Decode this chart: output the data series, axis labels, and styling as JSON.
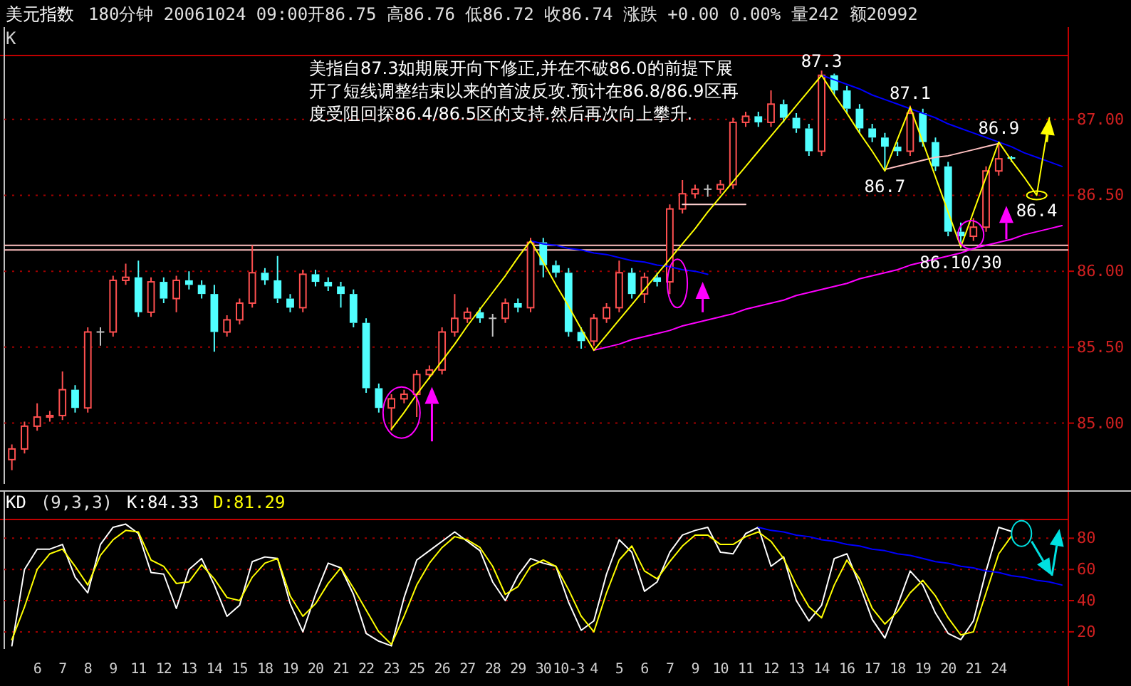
{
  "chart_data": [
    {
      "type": "candlestick",
      "title": "美元指数",
      "subtitle": "180分钟  20061024 09:00开86.75 高86.76 低86.72 收86.74 涨跌 +0.00 0.00% 量242 额20992",
      "annotations": [
        "K",
        "美指自87.3如期展开向下修正,并在不破86.0的前提下展开了短线调整结束以来的首波反攻.预计在86.8/86.9区再度受阻回探86.4/86.5区的支持.然后再次向上攀升.",
        {
          "text": "87.3",
          "y": 87.29
        },
        {
          "text": "87.1",
          "y": 87.08
        },
        {
          "text": "86.7",
          "y": 86.66
        },
        {
          "text": "86.9",
          "y": 86.85
        },
        {
          "text": "86.4",
          "y": 86.5
        },
        {
          "text": "86.10/30",
          "y": 86.16
        }
      ],
      "categories": [
        null,
        null,
        null,
        null,
        null,
        null,
        null,
        null,
        null,
        null,
        null,
        null,
        null,
        null,
        null,
        null,
        null,
        null,
        null,
        null,
        null,
        null,
        null,
        null,
        null,
        null,
        null,
        null,
        null,
        null,
        null,
        null,
        null,
        null,
        null,
        null,
        null,
        null,
        null,
        null,
        null,
        null,
        null,
        null,
        null,
        null,
        null,
        null,
        null,
        null,
        null,
        null,
        null,
        null,
        null,
        null,
        null,
        null,
        null,
        null,
        null,
        null,
        null,
        null,
        null,
        null,
        null,
        null,
        null,
        null,
        null,
        null,
        null,
        null,
        null,
        null,
        null,
        null,
        null,
        null,
        null,
        null,
        null,
        null
      ],
      "ylim": [
        84.6,
        87.42
      ],
      "yticks": [
        {
          "value": 85,
          "label": "85.00"
        },
        {
          "value": 85.5,
          "label": "85.50"
        },
        {
          "value": 86,
          "label": "86.00"
        },
        {
          "value": 86.5,
          "label": "86.50"
        },
        {
          "value": 87,
          "label": "87.00"
        }
      ],
      "grid": "y",
      "tick_labels": "y",
      "ref_lines": [
        {
          "axis": "y",
          "value": 86.17,
          "color": "#ffc0c0"
        },
        {
          "axis": "y",
          "value": 86.14,
          "color": "#ffc0c0"
        }
      ],
      "series": [
        {
          "type": "candlestick",
          "ohlc": [
            [
              84.76,
              84.86,
              84.69,
              84.83
            ],
            [
              84.83,
              85.01,
              84.8,
              84.98
            ],
            [
              84.98,
              85.13,
              84.95,
              85.04
            ],
            [
              85.04,
              85.08,
              85.01,
              85.05
            ],
            [
              85.05,
              85.34,
              85.02,
              85.22
            ],
            [
              85.22,
              85.25,
              85.07,
              85.1
            ],
            [
              85.1,
              85.63,
              85.07,
              85.6
            ],
            [
              85.6,
              85.63,
              85.51,
              85.6
            ],
            [
              85.6,
              85.97,
              85.57,
              85.94
            ],
            [
              85.94,
              86.05,
              85.91,
              85.96
            ],
            [
              85.96,
              86.07,
              85.7,
              85.73
            ],
            [
              85.73,
              85.96,
              85.7,
              85.93
            ],
            [
              85.93,
              85.96,
              85.79,
              85.82
            ],
            [
              85.82,
              85.97,
              85.73,
              85.94
            ],
            [
              85.94,
              86.0,
              85.88,
              85.91
            ],
            [
              85.91,
              85.94,
              85.82,
              85.85
            ],
            [
              85.85,
              85.91,
              85.47,
              85.6
            ],
            [
              85.6,
              85.71,
              85.57,
              85.68
            ],
            [
              85.68,
              85.82,
              85.65,
              85.79
            ],
            [
              85.79,
              86.17,
              85.76,
              85.99
            ],
            [
              85.99,
              86.02,
              85.91,
              85.94
            ],
            [
              85.94,
              86.1,
              85.79,
              85.82
            ],
            [
              85.82,
              85.85,
              85.73,
              85.76
            ],
            [
              85.76,
              86.01,
              85.73,
              85.98
            ],
            [
              85.98,
              86.01,
              85.9,
              85.93
            ],
            [
              85.93,
              85.96,
              85.87,
              85.9
            ],
            [
              85.9,
              85.93,
              85.76,
              85.85
            ],
            [
              85.85,
              85.88,
              85.63,
              85.66
            ],
            [
              85.66,
              85.69,
              85.2,
              85.23
            ],
            [
              85.23,
              85.26,
              85.07,
              85.1
            ],
            [
              85.1,
              85.19,
              84.95,
              85.16
            ],
            [
              85.16,
              85.22,
              85.13,
              85.19
            ],
            [
              85.19,
              85.35,
              85.04,
              85.32
            ],
            [
              85.32,
              85.38,
              85.29,
              85.35
            ],
            [
              85.35,
              85.63,
              85.32,
              85.6
            ],
            [
              85.6,
              85.85,
              85.57,
              85.69
            ],
            [
              85.69,
              85.76,
              85.66,
              85.73
            ],
            [
              85.73,
              85.76,
              85.66,
              85.69
            ],
            [
              85.69,
              85.72,
              85.57,
              85.69
            ],
            [
              85.69,
              85.82,
              85.66,
              85.79
            ],
            [
              85.79,
              85.82,
              85.73,
              85.76
            ],
            [
              85.76,
              86.22,
              85.73,
              86.19
            ],
            [
              86.19,
              86.22,
              85.96,
              86.04
            ],
            [
              86.04,
              86.07,
              85.96,
              85.99
            ],
            [
              85.99,
              86.02,
              85.57,
              85.6
            ],
            [
              85.6,
              85.63,
              85.49,
              85.54
            ],
            [
              85.54,
              85.72,
              85.51,
              85.69
            ],
            [
              85.69,
              85.79,
              85.66,
              85.76
            ],
            [
              85.76,
              86.07,
              85.73,
              85.99
            ],
            [
              85.99,
              86.02,
              85.82,
              85.85
            ],
            [
              85.85,
              85.99,
              85.79,
              85.96
            ],
            [
              85.96,
              85.99,
              85.9,
              85.93
            ],
            [
              85.93,
              86.44,
              85.85,
              86.41
            ],
            [
              86.41,
              86.6,
              86.38,
              86.51
            ],
            [
              86.51,
              86.57,
              86.48,
              86.54
            ],
            [
              86.54,
              86.57,
              86.49,
              86.54
            ],
            [
              86.54,
              86.6,
              86.51,
              86.57
            ],
            [
              86.57,
              87.01,
              86.54,
              86.98
            ],
            [
              86.98,
              87.05,
              86.95,
              87.02
            ],
            [
              87.02,
              87.05,
              86.95,
              86.98
            ],
            [
              86.98,
              87.19,
              86.95,
              87.1
            ],
            [
              87.1,
              87.13,
              86.98,
              87.01
            ],
            [
              87.01,
              87.04,
              86.91,
              86.94
            ],
            [
              86.94,
              86.97,
              86.76,
              86.79
            ],
            [
              86.79,
              87.32,
              86.76,
              87.29
            ],
            [
              87.29,
              87.3,
              87.16,
              87.19
            ],
            [
              87.19,
              87.22,
              87.04,
              87.07
            ],
            [
              87.07,
              87.1,
              86.91,
              86.94
            ],
            [
              86.94,
              86.97,
              86.85,
              86.88
            ],
            [
              86.88,
              86.91,
              86.66,
              86.82
            ],
            [
              86.82,
              86.85,
              86.76,
              86.79
            ],
            [
              86.79,
              87.09,
              86.76,
              87.04
            ],
            [
              87.04,
              87.07,
              86.82,
              86.85
            ],
            [
              86.85,
              86.88,
              86.66,
              86.69
            ],
            [
              86.69,
              86.72,
              86.23,
              86.26
            ],
            [
              86.26,
              86.32,
              86.15,
              86.23
            ],
            [
              86.23,
              86.35,
              86.2,
              86.29
            ],
            [
              86.29,
              86.69,
              86.26,
              86.66
            ],
            [
              86.66,
              86.85,
              86.63,
              86.74
            ],
            [
              86.75,
              86.76,
              86.72,
              86.74
            ],
            null,
            null,
            null,
            null
          ],
          "colors": [
            "#ff5050",
            "#ff5050",
            "#ff5050",
            "#ff5050",
            "#ff5050",
            "#50ffff",
            "#ff5050",
            "#c0c0c0",
            "#ff5050",
            "#ff5050",
            "#50ffff",
            "#ff5050",
            "#50ffff",
            "#ff5050",
            "#50ffff",
            "#50ffff",
            "#50ffff",
            "#ff5050",
            "#ff5050",
            "#ff5050",
            "#50ffff",
            "#50ffff",
            "#50ffff",
            "#ff5050",
            "#50ffff",
            "#50ffff",
            "#50ffff",
            "#50ffff",
            "#50ffff",
            "#50ffff",
            "#ff5050",
            "#ff5050",
            "#ff5050",
            "#ff5050",
            "#ff5050",
            "#ff5050",
            "#ff5050",
            "#50ffff",
            "#c0c0c0",
            "#ff5050",
            "#50ffff",
            "#ff5050",
            "#50ffff",
            "#50ffff",
            "#50ffff",
            "#50ffff",
            "#ff5050",
            "#ff5050",
            "#ff5050",
            "#50ffff",
            "#ff5050",
            "#50ffff",
            "#ff5050",
            "#ff5050",
            "#ff5050",
            "#c0c0c0",
            "#ff5050",
            "#ff5050",
            "#ff5050",
            "#50ffff",
            "#ff5050",
            "#50ffff",
            "#50ffff",
            "#50ffff",
            "#ff5050",
            "#50ffff",
            "#50ffff",
            "#50ffff",
            "#50ffff",
            "#50ffff",
            "#50ffff",
            "#ff5050",
            "#50ffff",
            "#50ffff",
            "#50ffff",
            "#50ffff",
            "#ff5050",
            "#ff5050",
            "#ff5050",
            "#50ffff",
            null,
            null,
            null,
            null
          ]
        },
        {
          "type": "line",
          "color": "#ffc0c0",
          "values": [
            null,
            null,
            null,
            null,
            null,
            null,
            null,
            null,
            null,
            null,
            null,
            null,
            null,
            null,
            null,
            null,
            null,
            null,
            null,
            null,
            null,
            null,
            null,
            null,
            null,
            null,
            null,
            null,
            null,
            null,
            null,
            null,
            null,
            null,
            null,
            null,
            null,
            null,
            null,
            null,
            null,
            null,
            null,
            null,
            null,
            null,
            null,
            null,
            null,
            null,
            null,
            null,
            null,
            null,
            null,
            null,
            null,
            null,
            null,
            null,
            null,
            null,
            null,
            null,
            null,
            null,
            null,
            null,
            null,
            86.67,
            86.69,
            86.71,
            86.73,
            86.75,
            86.76,
            86.78,
            86.8,
            86.82,
            86.84,
            null,
            null,
            null,
            null,
            null
          ]
        },
        {
          "type": "line",
          "color": "#ffd0d0",
          "values": [
            null,
            null,
            null,
            null,
            null,
            null,
            null,
            null,
            null,
            null,
            null,
            null,
            null,
            null,
            null,
            null,
            null,
            null,
            null,
            null,
            null,
            null,
            null,
            null,
            null,
            null,
            null,
            null,
            null,
            null,
            null,
            null,
            null,
            null,
            null,
            null,
            null,
            null,
            null,
            null,
            null,
            null,
            null,
            null,
            null,
            null,
            null,
            null,
            null,
            null,
            null,
            null,
            null,
            86.44,
            86.44,
            86.44,
            86.44,
            86.44,
            86.44,
            null,
            null,
            null,
            null,
            null,
            null,
            null,
            null,
            null,
            null,
            null,
            null,
            null,
            null,
            null,
            null,
            null,
            null,
            null,
            null,
            null,
            null,
            null,
            null,
            null
          ]
        },
        {
          "type": "line",
          "color": "#0000ff",
          "values": [
            null,
            null,
            null,
            null,
            null,
            null,
            null,
            null,
            null,
            null,
            null,
            null,
            null,
            null,
            null,
            null,
            null,
            null,
            null,
            null,
            null,
            null,
            null,
            null,
            null,
            null,
            null,
            null,
            null,
            null,
            null,
            null,
            null,
            null,
            null,
            null,
            null,
            null,
            null,
            null,
            null,
            86.2,
            86.18,
            86.17,
            86.15,
            86.14,
            86.12,
            86.11,
            86.09,
            86.07,
            86.06,
            86.04,
            86.03,
            86.01,
            86.0,
            85.98,
            null,
            null,
            null,
            null,
            null,
            null,
            null,
            null,
            null,
            null,
            null,
            null,
            null,
            null,
            null,
            null,
            null,
            null,
            null,
            null,
            null,
            null,
            null,
            null,
            null,
            null,
            null,
            null
          ]
        },
        {
          "type": "line",
          "color": "#0000ff",
          "values": [
            null,
            null,
            null,
            null,
            null,
            null,
            null,
            null,
            null,
            null,
            null,
            null,
            null,
            null,
            null,
            null,
            null,
            null,
            null,
            null,
            null,
            null,
            null,
            null,
            null,
            null,
            null,
            null,
            null,
            null,
            null,
            null,
            null,
            null,
            null,
            null,
            null,
            null,
            null,
            null,
            null,
            null,
            null,
            null,
            null,
            null,
            null,
            null,
            null,
            null,
            null,
            null,
            null,
            null,
            null,
            null,
            null,
            null,
            null,
            null,
            null,
            null,
            null,
            null,
            87.29,
            87.26,
            87.23,
            87.2,
            87.16,
            87.13,
            87.1,
            87.07,
            87.04,
            87.01,
            86.97,
            86.94,
            86.91,
            86.88,
            86.85,
            86.82,
            86.78,
            86.75,
            86.72,
            86.69
          ]
        },
        {
          "type": "line",
          "color": "#ff00ff",
          "values": [
            null,
            null,
            null,
            null,
            null,
            null,
            null,
            null,
            null,
            null,
            null,
            null,
            null,
            null,
            null,
            null,
            null,
            null,
            null,
            null,
            null,
            null,
            null,
            null,
            null,
            null,
            null,
            null,
            null,
            null,
            null,
            null,
            null,
            null,
            null,
            null,
            null,
            null,
            null,
            null,
            null,
            null,
            null,
            null,
            null,
            null,
            85.48,
            85.5,
            85.52,
            85.55,
            85.57,
            85.59,
            85.61,
            85.64,
            85.66,
            85.68,
            85.7,
            85.72,
            85.75,
            85.77,
            85.79,
            85.81,
            85.84,
            85.86,
            85.88,
            85.9,
            85.92,
            85.95,
            85.97,
            85.99,
            86.01,
            86.04,
            86.06,
            86.08,
            86.1,
            86.12,
            86.15,
            86.17,
            86.19,
            86.21,
            86.24,
            86.26,
            86.28,
            86.3
          ]
        },
        {
          "type": "line",
          "color": "#ffff00",
          "values": [
            null,
            null,
            null,
            null,
            null,
            null,
            null,
            null,
            null,
            null,
            null,
            null,
            null,
            null,
            null,
            null,
            null,
            null,
            null,
            null,
            null,
            null,
            null,
            null,
            null,
            null,
            null,
            null,
            null,
            null,
            84.96,
            85.07,
            85.19,
            85.3,
            85.41,
            85.52,
            85.64,
            85.75,
            85.86,
            85.97,
            86.09,
            86.2,
            86.06,
            85.91,
            85.77,
            85.62,
            85.48,
            85.58,
            85.68,
            85.78,
            85.88,
            85.98,
            86.08,
            86.18,
            86.28,
            86.39,
            86.49,
            86.59,
            86.69,
            86.79,
            86.89,
            86.99,
            87.09,
            87.19,
            87.29,
            87.16,
            87.04,
            86.91,
            86.79,
            86.66,
            86.87,
            87.08,
            86.85,
            86.62,
            86.39,
            86.16,
            86.39,
            86.62,
            86.85,
            86.73,
            86.62,
            86.5,
            87.01,
            null
          ]
        }
      ]
    },
    {
      "type": "line",
      "title": "KD",
      "subtitle": "(9,3,3)",
      "categories": [
        null,
        null,
        "6",
        null,
        "7",
        null,
        "8",
        null,
        "9",
        null,
        "11",
        null,
        "12",
        null,
        "13",
        null,
        "14",
        null,
        "15",
        null,
        "18",
        null,
        "19",
        null,
        "20",
        null,
        "21",
        null,
        "22",
        null,
        "23",
        null,
        "25",
        null,
        "26",
        null,
        "27",
        null,
        "28",
        null,
        "29",
        null,
        "30",
        null,
        "10-3",
        null,
        "4",
        null,
        "5",
        null,
        "6",
        null,
        "7",
        null,
        "9",
        null,
        "10",
        null,
        "11",
        null,
        "12",
        null,
        "13",
        null,
        "14",
        null,
        "16",
        null,
        "17",
        null,
        "18",
        null,
        "19",
        null,
        "20",
        null,
        "21",
        null,
        "24",
        null,
        null,
        null,
        null,
        null
      ],
      "ylim": [
        9,
        92
      ],
      "yticks": [
        20,
        40,
        60,
        80
      ],
      "grid": "y",
      "series": [
        {
          "name": "K:84.33",
          "color": "#ffffff",
          "values": [
            11,
            60,
            73,
            73,
            76,
            55,
            45,
            76,
            87,
            89,
            83,
            58,
            57,
            35,
            60,
            67,
            50,
            30,
            37,
            65,
            68,
            67,
            38,
            20,
            44,
            64,
            61,
            44,
            19,
            14,
            11,
            42,
            66,
            72,
            78,
            84,
            78,
            72,
            52,
            40,
            56,
            67,
            64,
            62,
            39,
            21,
            27,
            57,
            79,
            71,
            46,
            52,
            71,
            82,
            85,
            87,
            71,
            70,
            83,
            87,
            62,
            68,
            40,
            27,
            37,
            67,
            70,
            50,
            28,
            16,
            37,
            59,
            50,
            32,
            19,
            15,
            27,
            59,
            87,
            84.33,
            null,
            null,
            null,
            null
          ]
        },
        {
          "name": "D:81.29",
          "color": "#ffff00",
          "values": [
            15,
            36,
            60,
            70,
            73,
            62,
            50,
            69,
            79,
            85,
            84,
            66,
            62,
            51,
            52,
            63,
            54,
            42,
            40,
            55,
            64,
            67,
            43,
            30,
            38,
            51,
            61,
            48,
            34,
            20,
            12,
            30,
            50,
            64,
            74,
            81,
            79,
            74,
            62,
            44,
            49,
            62,
            66,
            62,
            47,
            30,
            20,
            45,
            66,
            75,
            59,
            54,
            65,
            75,
            82,
            82,
            76,
            76,
            81,
            84,
            78,
            67,
            50,
            36,
            29,
            50,
            66,
            54,
            35,
            25,
            33,
            45,
            53,
            43,
            29,
            18,
            20,
            45,
            70,
            81.29,
            null,
            null,
            null,
            null
          ]
        },
        {
          "color": "#0000ff",
          "values": [
            null,
            null,
            null,
            null,
            null,
            null,
            null,
            null,
            null,
            null,
            null,
            null,
            null,
            null,
            null,
            null,
            null,
            null,
            null,
            null,
            null,
            null,
            null,
            null,
            null,
            null,
            null,
            null,
            null,
            null,
            null,
            null,
            null,
            null,
            null,
            null,
            null,
            null,
            null,
            null,
            null,
            null,
            null,
            null,
            null,
            null,
            null,
            null,
            null,
            null,
            null,
            null,
            null,
            null,
            null,
            null,
            null,
            null,
            null,
            87,
            85,
            84,
            82,
            81,
            79,
            78,
            76,
            75,
            73,
            72,
            70,
            69,
            67,
            65,
            64,
            62,
            61,
            59,
            58,
            56,
            55,
            53,
            52,
            50
          ]
        }
      ]
    }
  ]
}
